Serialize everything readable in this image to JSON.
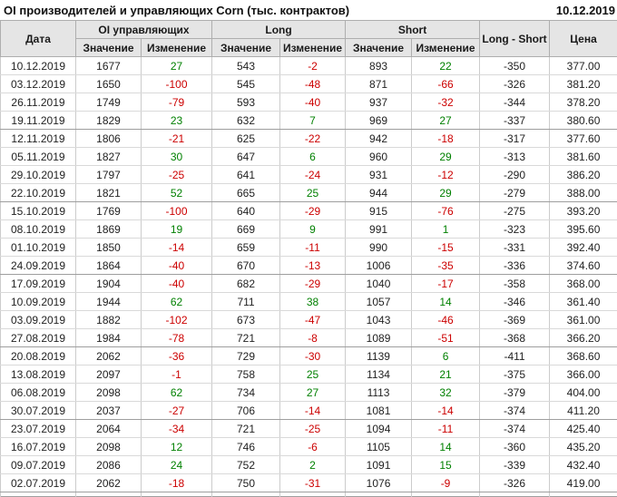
{
  "title": "OI производителей и управляющих Corn (тыс. контрактов)",
  "report_date": "10.12.2019",
  "colors": {
    "positive": "#008000",
    "negative": "#cc0000",
    "header_bg": "#e5e5e5"
  },
  "table": {
    "headers": {
      "date": "Дата",
      "oi_group": "OI управляющих",
      "long_group": "Long",
      "short_group": "Short",
      "long_short": "Long - Short",
      "price": "Цена",
      "value": "Значение",
      "change": "Изменение"
    },
    "rows": [
      {
        "date": "10.12.2019",
        "oi": 1677,
        "oi_chg": 27,
        "long": 543,
        "long_chg": -2,
        "short": 893,
        "short_chg": 22,
        "long_short": -350,
        "price": "377.00"
      },
      {
        "date": "03.12.2019",
        "oi": 1650,
        "oi_chg": -100,
        "long": 545,
        "long_chg": -48,
        "short": 871,
        "short_chg": -66,
        "long_short": -326,
        "price": "381.20"
      },
      {
        "date": "26.11.2019",
        "oi": 1749,
        "oi_chg": -79,
        "long": 593,
        "long_chg": -40,
        "short": 937,
        "short_chg": -32,
        "long_short": -344,
        "price": "378.20"
      },
      {
        "date": "19.11.2019",
        "oi": 1829,
        "oi_chg": 23,
        "long": 632,
        "long_chg": 7,
        "short": 969,
        "short_chg": 27,
        "long_short": -337,
        "price": "380.60"
      },
      {
        "date": "12.11.2019",
        "oi": 1806,
        "oi_chg": -21,
        "long": 625,
        "long_chg": -22,
        "short": 942,
        "short_chg": -18,
        "long_short": -317,
        "price": "377.60"
      },
      {
        "date": "05.11.2019",
        "oi": 1827,
        "oi_chg": 30,
        "long": 647,
        "long_chg": 6,
        "short": 960,
        "short_chg": 29,
        "long_short": -313,
        "price": "381.60"
      },
      {
        "date": "29.10.2019",
        "oi": 1797,
        "oi_chg": -25,
        "long": 641,
        "long_chg": -24,
        "short": 931,
        "short_chg": -12,
        "long_short": -290,
        "price": "386.20"
      },
      {
        "date": "22.10.2019",
        "oi": 1821,
        "oi_chg": 52,
        "long": 665,
        "long_chg": 25,
        "short": 944,
        "short_chg": 29,
        "long_short": -279,
        "price": "388.00"
      },
      {
        "date": "15.10.2019",
        "oi": 1769,
        "oi_chg": -100,
        "long": 640,
        "long_chg": -29,
        "short": 915,
        "short_chg": -76,
        "long_short": -275,
        "price": "393.20"
      },
      {
        "date": "08.10.2019",
        "oi": 1869,
        "oi_chg": 19,
        "long": 669,
        "long_chg": 9,
        "short": 991,
        "short_chg": 1,
        "long_short": -323,
        "price": "395.60"
      },
      {
        "date": "01.10.2019",
        "oi": 1850,
        "oi_chg": -14,
        "long": 659,
        "long_chg": -11,
        "short": 990,
        "short_chg": -15,
        "long_short": -331,
        "price": "392.40"
      },
      {
        "date": "24.09.2019",
        "oi": 1864,
        "oi_chg": -40,
        "long": 670,
        "long_chg": -13,
        "short": 1006,
        "short_chg": -35,
        "long_short": -336,
        "price": "374.60"
      },
      {
        "date": "17.09.2019",
        "oi": 1904,
        "oi_chg": -40,
        "long": 682,
        "long_chg": -29,
        "short": 1040,
        "short_chg": -17,
        "long_short": -358,
        "price": "368.00"
      },
      {
        "date": "10.09.2019",
        "oi": 1944,
        "oi_chg": 62,
        "long": 711,
        "long_chg": 38,
        "short": 1057,
        "short_chg": 14,
        "long_short": -346,
        "price": "361.40"
      },
      {
        "date": "03.09.2019",
        "oi": 1882,
        "oi_chg": -102,
        "long": 673,
        "long_chg": -47,
        "short": 1043,
        "short_chg": -46,
        "long_short": -369,
        "price": "361.00"
      },
      {
        "date": "27.08.2019",
        "oi": 1984,
        "oi_chg": -78,
        "long": 721,
        "long_chg": -8,
        "short": 1089,
        "short_chg": -51,
        "long_short": -368,
        "price": "366.20"
      },
      {
        "date": "20.08.2019",
        "oi": 2062,
        "oi_chg": -36,
        "long": 729,
        "long_chg": -30,
        "short": 1139,
        "short_chg": 6,
        "long_short": -411,
        "price": "368.60"
      },
      {
        "date": "13.08.2019",
        "oi": 2097,
        "oi_chg": -1,
        "long": 758,
        "long_chg": 25,
        "short": 1134,
        "short_chg": 21,
        "long_short": -375,
        "price": "366.00"
      },
      {
        "date": "06.08.2019",
        "oi": 2098,
        "oi_chg": 62,
        "long": 734,
        "long_chg": 27,
        "short": 1113,
        "short_chg": 32,
        "long_short": -379,
        "price": "404.00"
      },
      {
        "date": "30.07.2019",
        "oi": 2037,
        "oi_chg": -27,
        "long": 706,
        "long_chg": -14,
        "short": 1081,
        "short_chg": -14,
        "long_short": -374,
        "price": "411.20"
      },
      {
        "date": "23.07.2019",
        "oi": 2064,
        "oi_chg": -34,
        "long": 721,
        "long_chg": -25,
        "short": 1094,
        "short_chg": -11,
        "long_short": -374,
        "price": "425.40"
      },
      {
        "date": "16.07.2019",
        "oi": 2098,
        "oi_chg": 12,
        "long": 746,
        "long_chg": -6,
        "short": 1105,
        "short_chg": 14,
        "long_short": -360,
        "price": "435.20"
      },
      {
        "date": "09.07.2019",
        "oi": 2086,
        "oi_chg": 24,
        "long": 752,
        "long_chg": 2,
        "short": 1091,
        "short_chg": 15,
        "long_short": -339,
        "price": "432.40"
      },
      {
        "date": "02.07.2019",
        "oi": 2062,
        "oi_chg": -18,
        "long": 750,
        "long_chg": -31,
        "short": 1076,
        "short_chg": -9,
        "long_short": -326,
        "price": "419.00"
      }
    ]
  }
}
